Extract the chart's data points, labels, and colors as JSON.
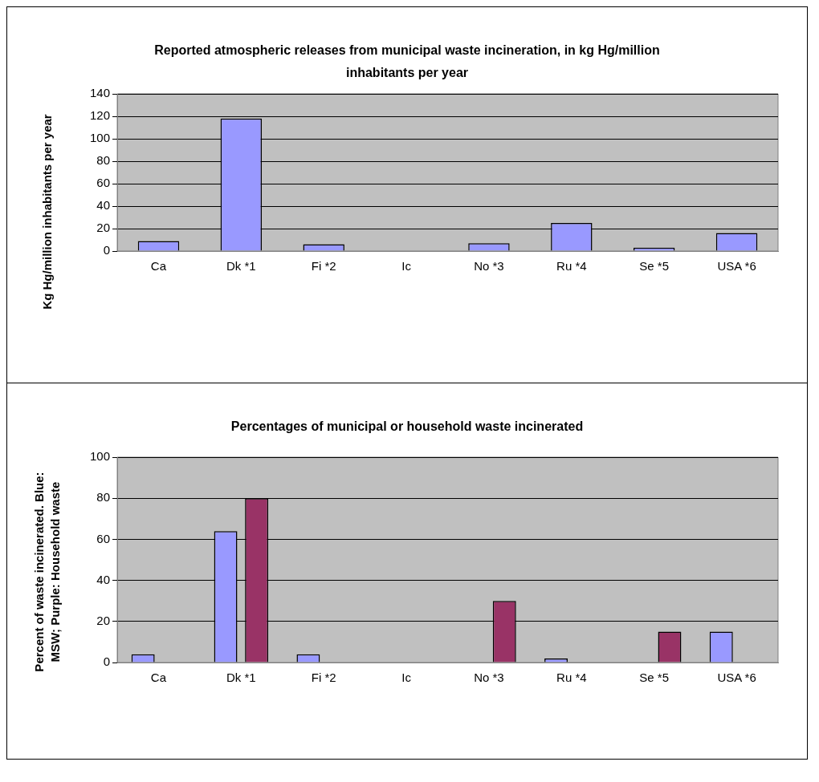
{
  "chart_data": [
    {
      "type": "bar",
      "title": "Reported atmospheric releases from municipal waste incineration, in kg Hg/million inhabitants per year",
      "ylabel": "Kg Hg/million inhabitants per year",
      "categories": [
        "Ca",
        "Dk *1",
        "Fi *2",
        "Ic",
        "No *3",
        "Ru *4",
        "Se *5",
        "USA *6"
      ],
      "series": [
        {
          "color": "#9999ff",
          "values": [
            9,
            118,
            6,
            0,
            7,
            25,
            3,
            16
          ]
        }
      ],
      "ylim": [
        0,
        140
      ],
      "yticks": [
        0,
        20,
        40,
        60,
        80,
        100,
        120,
        140
      ],
      "grid": "y",
      "legend": false
    },
    {
      "type": "bar",
      "title": "Percentages of municipal or household waste incinerated",
      "ylabel": "Percent of waste incinerated. Blue: MSW; Purple: Household waste",
      "categories": [
        "Ca",
        "Dk *1",
        "Fi *2",
        "Ic",
        "No *3",
        "Ru *4",
        "Se *5",
        "USA *6"
      ],
      "series": [
        {
          "color": "#9999ff",
          "values": [
            4,
            64,
            4,
            0,
            0,
            2,
            0,
            15
          ]
        },
        {
          "color": "#993366",
          "values": [
            0,
            80,
            0,
            0,
            30,
            0,
            15,
            0
          ]
        }
      ],
      "ylim": [
        0,
        100
      ],
      "yticks": [
        0,
        20,
        40,
        60,
        80,
        100
      ],
      "grid": "y",
      "legend": false
    }
  ]
}
